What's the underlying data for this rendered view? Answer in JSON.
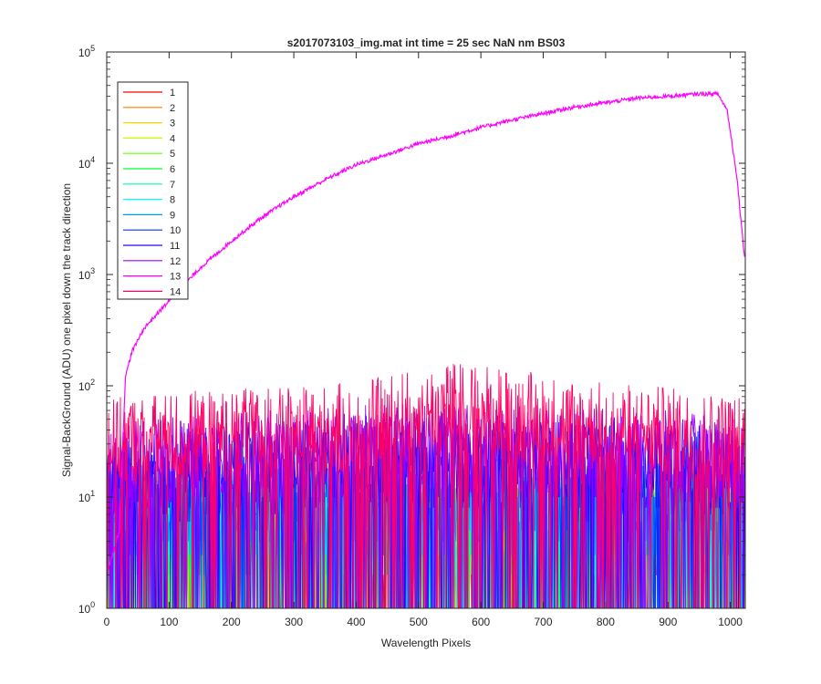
{
  "chart_data": {
    "type": "line",
    "title": "s2017073103_img.mat int time = 25 sec  NaN nm BS03",
    "xlabel": "Wavelength Pixels",
    "ylabel": "Signal-BackGround (ADU) one pixel down the track direction",
    "x_range": [
      0,
      1024
    ],
    "y_range": [
      1,
      100000
    ],
    "y_scale": "log",
    "grid": false,
    "legend_position": "top-left",
    "x_ticks": [
      {
        "value": 0,
        "label": "0"
      },
      {
        "value": 100,
        "label": "100"
      },
      {
        "value": 200,
        "label": "200"
      },
      {
        "value": 300,
        "label": "300"
      },
      {
        "value": 400,
        "label": "400"
      },
      {
        "value": 500,
        "label": "500"
      },
      {
        "value": 600,
        "label": "600"
      },
      {
        "value": 700,
        "label": "700"
      },
      {
        "value": 800,
        "label": "800"
      },
      {
        "value": 900,
        "label": "900"
      },
      {
        "value": 1000,
        "label": "1000"
      }
    ],
    "y_ticks": [
      {
        "value": 1,
        "base": "10",
        "exp": "0"
      },
      {
        "value": 10,
        "base": "10",
        "exp": "1"
      },
      {
        "value": 100,
        "base": "10",
        "exp": "2"
      },
      {
        "value": 1000,
        "base": "10",
        "exp": "3"
      },
      {
        "value": 10000,
        "base": "10",
        "exp": "4"
      },
      {
        "value": 100000,
        "base": "10",
        "exp": "5"
      }
    ],
    "series": [
      {
        "name": "1",
        "color": "#ff0000",
        "x": [
          0,
          100,
          200,
          300,
          400,
          500,
          600,
          700,
          800,
          900,
          1000,
          1023
        ],
        "y": [
          3,
          3,
          3,
          3,
          3,
          3,
          3,
          3,
          3,
          3,
          3,
          3
        ]
      },
      {
        "name": "2",
        "color": "#ff7f00",
        "x": [
          0,
          100,
          200,
          300,
          400,
          500,
          600,
          700,
          800,
          900,
          1000,
          1023
        ],
        "y": [
          4,
          4,
          4,
          4,
          4,
          4,
          4,
          4,
          4,
          4,
          4,
          4
        ]
      },
      {
        "name": "3",
        "color": "#ffd000",
        "x": [
          0,
          100,
          200,
          300,
          400,
          500,
          600,
          700,
          800,
          900,
          1000,
          1023
        ],
        "y": [
          4,
          4,
          4,
          4,
          4,
          4,
          4,
          4,
          4,
          4,
          4,
          4
        ]
      },
      {
        "name": "4",
        "color": "#c8ff00",
        "x": [
          0,
          100,
          200,
          300,
          400,
          500,
          600,
          700,
          800,
          900,
          1000,
          1023
        ],
        "y": [
          5,
          5,
          5,
          5,
          5,
          5,
          5,
          5,
          5,
          5,
          5,
          5
        ]
      },
      {
        "name": "5",
        "color": "#60ff00",
        "x": [
          0,
          100,
          200,
          300,
          400,
          500,
          600,
          700,
          800,
          900,
          1000,
          1023
        ],
        "y": [
          5,
          5,
          5,
          5,
          5,
          5,
          5,
          5,
          5,
          5,
          5,
          5
        ]
      },
      {
        "name": "6",
        "color": "#00ff30",
        "x": [
          0,
          100,
          200,
          300,
          400,
          500,
          600,
          700,
          800,
          900,
          1000,
          1023
        ],
        "y": [
          6,
          6,
          6,
          6,
          6,
          6,
          6,
          6,
          6,
          6,
          6,
          6
        ]
      },
      {
        "name": "7",
        "color": "#00ff99",
        "x": [
          0,
          100,
          200,
          300,
          400,
          500,
          600,
          700,
          800,
          900,
          1000,
          1023
        ],
        "y": [
          6,
          6,
          6,
          6,
          6,
          6,
          6,
          6,
          6,
          6,
          6,
          6
        ]
      },
      {
        "name": "8",
        "color": "#00ffff",
        "x": [
          0,
          100,
          200,
          300,
          400,
          500,
          600,
          700,
          800,
          900,
          1000,
          1023
        ],
        "y": [
          7,
          7,
          7,
          7,
          7,
          7,
          7,
          7,
          7,
          7,
          7,
          7
        ]
      },
      {
        "name": "9",
        "color": "#0099ff",
        "x": [
          0,
          100,
          200,
          300,
          400,
          500,
          600,
          700,
          800,
          900,
          1000,
          1023
        ],
        "y": [
          8,
          8,
          8,
          8,
          8,
          8,
          8,
          8,
          8,
          8,
          8,
          8
        ]
      },
      {
        "name": "10",
        "color": "#0033ff",
        "x": [
          0,
          100,
          200,
          300,
          400,
          500,
          600,
          700,
          800,
          900,
          1000,
          1023
        ],
        "y": [
          12,
          14,
          16,
          18,
          19,
          20,
          20,
          19,
          18,
          17,
          16,
          15
        ]
      },
      {
        "name": "11",
        "color": "#3300ff",
        "x": [
          0,
          100,
          200,
          300,
          400,
          500,
          600,
          700,
          800,
          900,
          1000,
          1023
        ],
        "y": [
          14,
          16,
          18,
          20,
          22,
          23,
          23,
          22,
          21,
          19,
          18,
          17
        ]
      },
      {
        "name": "12",
        "color": "#9900ff",
        "x": [
          0,
          100,
          200,
          300,
          400,
          500,
          600,
          700,
          800,
          900,
          1000,
          1023
        ],
        "y": [
          18,
          20,
          22,
          24,
          26,
          27,
          27,
          26,
          25,
          23,
          21,
          20
        ]
      },
      {
        "name": "13",
        "color": "#ff00ff",
        "x": [
          0,
          20,
          30,
          40,
          60,
          100,
          150,
          200,
          250,
          300,
          350,
          400,
          450,
          500,
          550,
          600,
          650,
          700,
          750,
          800,
          850,
          900,
          950,
          980,
          995,
          1010,
          1023
        ],
        "y": [
          2,
          5,
          120,
          200,
          330,
          580,
          1150,
          2000,
          3300,
          5000,
          7100,
          9700,
          12000,
          15000,
          17500,
          21000,
          24500,
          28000,
          32000,
          35000,
          38500,
          40000,
          42000,
          42000,
          30000,
          8000,
          1400
        ]
      },
      {
        "name": "14",
        "color": "#ff0066",
        "x": [
          0,
          100,
          200,
          300,
          400,
          450,
          500,
          550,
          600,
          650,
          700,
          750,
          800,
          850,
          900,
          950,
          1000,
          1023
        ],
        "y": [
          30,
          34,
          36,
          38,
          42,
          48,
          58,
          63,
          62,
          56,
          50,
          45,
          42,
          40,
          38,
          35,
          33,
          32
        ]
      }
    ]
  }
}
